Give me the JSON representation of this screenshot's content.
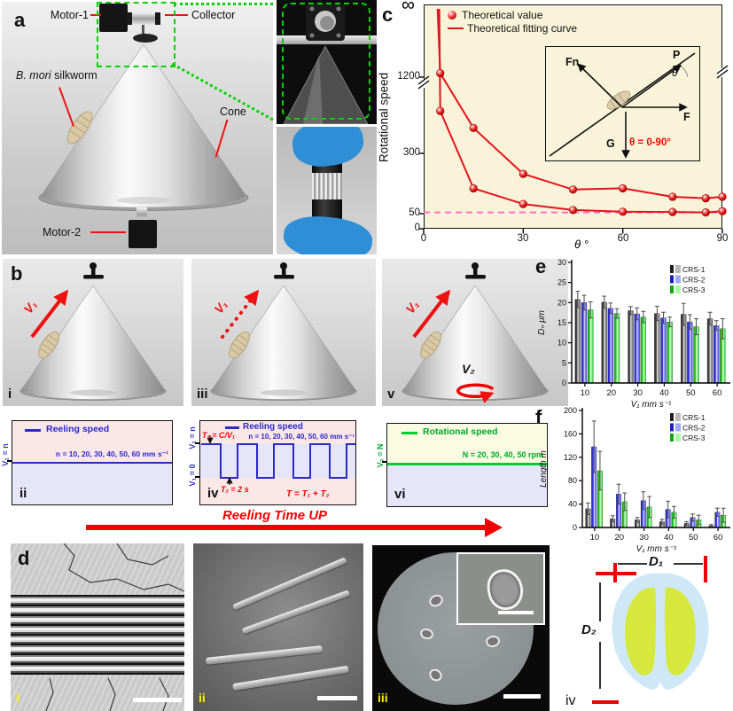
{
  "figure": {
    "panel_labels": {
      "a": "a",
      "b": "b",
      "c": "c",
      "d": "d",
      "e": "e",
      "f": "f"
    }
  },
  "panel_a": {
    "motor1": "Motor-1",
    "collector": "Collector",
    "silkworm_italic": "B. mori",
    "silkworm_rest": " silkworm",
    "cone": "Cone",
    "motor2": "Motor-2"
  },
  "panel_c": {
    "legend_value": "Theoretical value",
    "legend_curve": "Theoretical fitting curve",
    "ylabel": "Rotational speed",
    "xlabel": "θ °",
    "ytick_inf": "∞",
    "yticks": [
      "1200",
      "300",
      "50",
      "0"
    ],
    "xticks": [
      "0",
      "30",
      "60",
      "90"
    ],
    "inset": {
      "fn": "Fn",
      "p": "P",
      "f": "F",
      "g": "G",
      "theta": "θ",
      "range": "θ = 0-90°"
    }
  },
  "panel_b": {
    "tags": {
      "i": "i",
      "ii": "ii",
      "iii": "iii",
      "iv": "iv",
      "v": "v",
      "vi": "vi"
    },
    "v1": "V₁",
    "v2": "V₂",
    "ii": {
      "legend": "Reeling speed",
      "note": "n = 10, 20, 30, 40, 50, 60 mm s⁻¹",
      "ylabel": "V₁ = n"
    },
    "iv": {
      "legend": "Reeling speed",
      "t1": "T₁ = C/V₁",
      "note": "n = 10, 20, 30, 40, 50, 60 mm s⁻¹",
      "t2": "T₂ = 2 s",
      "sum": "T = T₁ + T₂",
      "ylabel_top": "V₁ = n",
      "ylabel_bottom": "V₁ = 0"
    },
    "vi": {
      "legend": "Rotational speed",
      "note": "N = 20, 30, 40, 50 rpm",
      "ylabel": "V₂ = N"
    },
    "arrow_label": "Reeling Time UP"
  },
  "panel_d": {
    "tags": {
      "i": "i",
      "ii": "ii",
      "iii": "iii",
      "iv": "iv"
    },
    "d1": "D₁",
    "d2": "D₂"
  },
  "chart_data": [
    {
      "id": "c",
      "type": "scatter",
      "ylabel": "Rotational speed",
      "xlabel": "θ °",
      "x_axis_range": [
        0,
        90
      ],
      "y_axis_nonlinear_ticks": [
        0,
        50,
        300,
        1200,
        "∞"
      ],
      "axis_breaks": true,
      "dashed_line_y": 55,
      "ytick_vals": [
        0,
        50,
        300,
        1200
      ],
      "xtick_vals": [
        0,
        30,
        60,
        90
      ],
      "series": [
        {
          "name": "upper",
          "fit_start_x": 4.2,
          "x": [
            5,
            15,
            30,
            45,
            60,
            75,
            85,
            90
          ],
          "y": [
            1280,
            600,
            215,
            150,
            155,
            120,
            114,
            120
          ]
        },
        {
          "name": "lower",
          "fit_start_x": 4.7,
          "x": [
            5,
            15,
            30,
            45,
            60,
            75,
            85,
            90
          ],
          "y": [
            800,
            155,
            90,
            65,
            58,
            57,
            55,
            60
          ]
        }
      ],
      "legend": [
        "Theoretical value",
        "Theoretical fitting curve"
      ]
    },
    {
      "id": "e",
      "type": "bar",
      "ylabel": "Dₙ μm",
      "xlabel": "V₁ mm s⁻¹",
      "ylim": [
        0,
        30
      ],
      "yticks": [
        0,
        5,
        10,
        15,
        20,
        25,
        30
      ],
      "categories": [
        10,
        20,
        30,
        40,
        50,
        60
      ],
      "series": [
        {
          "name": "CRS-1",
          "dark": "#1f1f1f",
          "mid": "#5a5a5a",
          "light": "#b9b9b9",
          "values": [
            20.8,
            20.1,
            18.0,
            17.3,
            17.1,
            16.0
          ],
          "errors": [
            2.0,
            1.5,
            1.0,
            1.8,
            2.7,
            1.6
          ]
        },
        {
          "name": "CRS-2",
          "dark": "#1f1fbf",
          "mid": "#4646e8",
          "light": "#9fa8ff",
          "values": [
            20.0,
            18.6,
            17.2,
            16.2,
            15.2,
            14.3
          ],
          "errors": [
            1.8,
            1.3,
            1.5,
            1.4,
            1.8,
            1.2
          ]
        },
        {
          "name": "CRS-3",
          "dark": "#12a812",
          "mid": "#2ed42e",
          "light": "#a8ffa8",
          "values": [
            18.2,
            17.3,
            16.4,
            15.2,
            14.0,
            13.5
          ],
          "errors": [
            2.0,
            1.2,
            1.4,
            1.2,
            2.0,
            2.5
          ]
        }
      ]
    },
    {
      "id": "f",
      "type": "bar",
      "ylabel": "Length m",
      "xlabel": "V₁ mm s⁻¹",
      "ylim": [
        0,
        200
      ],
      "yticks": [
        0,
        40,
        80,
        120,
        160,
        200
      ],
      "categories": [
        10,
        20,
        30,
        40,
        50,
        60
      ],
      "series": [
        {
          "name": "CRS-1",
          "dark": "#1f1f1f",
          "mid": "#5a5a5a",
          "light": "#b9b9b9",
          "values": [
            32,
            15,
            13,
            10,
            7,
            3
          ],
          "errors": [
            10,
            5,
            4,
            4,
            3,
            2
          ]
        },
        {
          "name": "CRS-2",
          "dark": "#1f1fbf",
          "mid": "#4646e8",
          "light": "#9fa8ff",
          "values": [
            138,
            57,
            46,
            31,
            17,
            26
          ],
          "errors": [
            44,
            17,
            15,
            14,
            6,
            7
          ]
        },
        {
          "name": "CRS-3",
          "dark": "#12a812",
          "mid": "#2ed42e",
          "light": "#a8ffa8",
          "values": [
            97,
            44,
            35,
            26,
            13,
            21
          ],
          "errors": [
            33,
            15,
            18,
            10,
            8,
            12
          ]
        }
      ]
    }
  ]
}
